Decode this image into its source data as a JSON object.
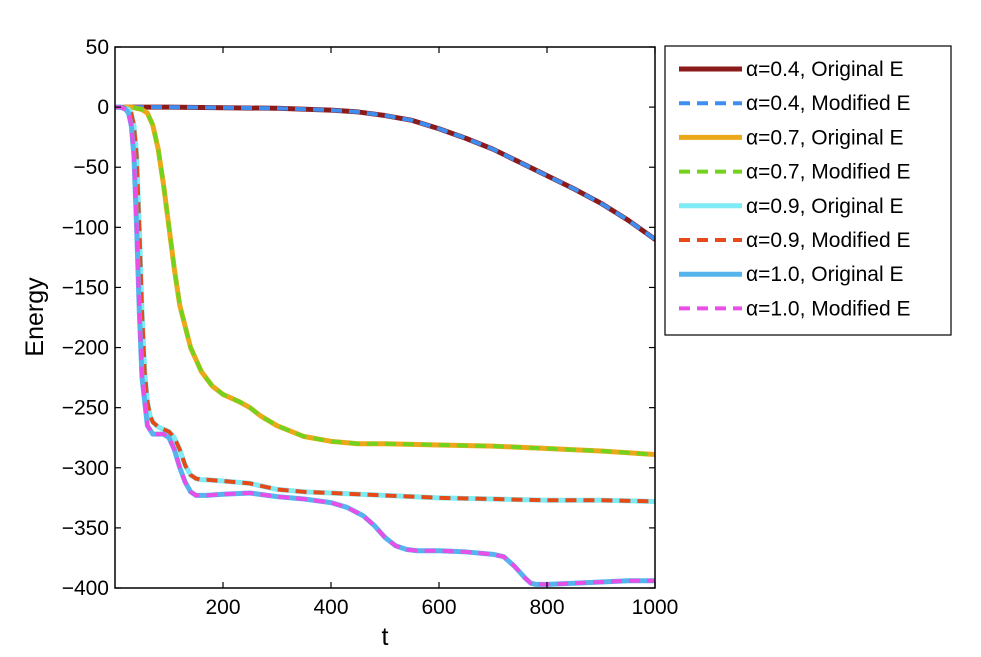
{
  "chart_data": {
    "type": "line",
    "title": "",
    "xlabel": "t",
    "ylabel": "Energy",
    "xlim": [
      0,
      1000
    ],
    "ylim": [
      -400,
      50
    ],
    "xticks": [
      200,
      400,
      600,
      800,
      1000
    ],
    "yticks": [
      50,
      0,
      -50,
      -100,
      -150,
      -200,
      -250,
      -300,
      -350,
      -400
    ],
    "grid": false,
    "legend_position": "outside-right-top",
    "series": [
      {
        "name": "α=0.4, Original E",
        "color": "#8B1A1A",
        "style": "solid",
        "width": 5,
        "x": [
          0,
          100,
          200,
          300,
          400,
          450,
          500,
          550,
          600,
          650,
          700,
          750,
          800,
          850,
          900,
          950,
          1000
        ],
        "y": [
          0,
          0,
          -0.5,
          -1,
          -2.5,
          -4,
          -7,
          -11,
          -18,
          -26,
          -35,
          -46,
          -57,
          -68,
          -80,
          -94,
          -110
        ]
      },
      {
        "name": "α=0.4, Modified E",
        "color": "#3D8EF0",
        "style": "dashed",
        "width": 4,
        "x": [
          0,
          100,
          200,
          300,
          400,
          450,
          500,
          550,
          600,
          650,
          700,
          750,
          800,
          850,
          900,
          950,
          1000
        ],
        "y": [
          0,
          0,
          -0.5,
          -1,
          -2.5,
          -4,
          -7,
          -11,
          -18,
          -26,
          -35,
          -46,
          -57,
          -68,
          -80,
          -94,
          -110
        ]
      },
      {
        "name": "α=0.7, Original E",
        "color": "#EBA91A",
        "style": "solid",
        "width": 5,
        "x": [
          0,
          30,
          50,
          60,
          70,
          80,
          90,
          100,
          110,
          120,
          140,
          160,
          180,
          200,
          230,
          250,
          270,
          300,
          350,
          400,
          450,
          500,
          600,
          700,
          800,
          900,
          1000
        ],
        "y": [
          0,
          0,
          -2,
          -5,
          -15,
          -35,
          -65,
          -100,
          -135,
          -165,
          -200,
          -220,
          -232,
          -239,
          -245,
          -250,
          -257,
          -265,
          -274,
          -278,
          -280,
          -280,
          -281,
          -282,
          -284,
          -286,
          -289
        ]
      },
      {
        "name": "α=0.7, Modified E",
        "color": "#73D21E",
        "style": "dashed",
        "width": 4,
        "x": [
          0,
          30,
          50,
          60,
          70,
          80,
          90,
          100,
          110,
          120,
          140,
          160,
          180,
          200,
          230,
          250,
          270,
          300,
          350,
          400,
          450,
          500,
          600,
          700,
          800,
          900,
          1000
        ],
        "y": [
          0,
          0,
          -2,
          -5,
          -15,
          -35,
          -65,
          -100,
          -135,
          -165,
          -200,
          -220,
          -232,
          -239,
          -245,
          -250,
          -257,
          -265,
          -274,
          -278,
          -280,
          -280,
          -281,
          -282,
          -284,
          -286,
          -289
        ]
      },
      {
        "name": "α=0.9, Original E",
        "color": "#7FEBF5",
        "style": "solid",
        "width": 5,
        "x": [
          0,
          15,
          25,
          30,
          35,
          40,
          45,
          50,
          55,
          60,
          65,
          70,
          80,
          90,
          100,
          110,
          120,
          130,
          140,
          150,
          160,
          170,
          200,
          250,
          300,
          350,
          400,
          500,
          600,
          700,
          800,
          900,
          1000
        ],
        "y": [
          0,
          0,
          -2,
          -5,
          -15,
          -40,
          -100,
          -170,
          -220,
          -245,
          -257,
          -262,
          -266,
          -268,
          -270,
          -275,
          -285,
          -298,
          -306,
          -309,
          -310,
          -310,
          -311,
          -313,
          -318,
          -320,
          -321,
          -323,
          -325,
          -326,
          -327,
          -327,
          -328
        ]
      },
      {
        "name": "α=0.9, Modified E",
        "color": "#E64A19",
        "style": "dashed",
        "width": 4,
        "x": [
          0,
          15,
          25,
          30,
          35,
          40,
          45,
          50,
          55,
          60,
          65,
          70,
          80,
          90,
          100,
          110,
          120,
          130,
          140,
          150,
          160,
          170,
          200,
          250,
          300,
          350,
          400,
          500,
          600,
          700,
          800,
          900,
          1000
        ],
        "y": [
          0,
          0,
          -2,
          -5,
          -15,
          -40,
          -100,
          -170,
          -220,
          -245,
          -257,
          -262,
          -266,
          -268,
          -270,
          -275,
          -285,
          -298,
          -306,
          -309,
          -310,
          -310,
          -311,
          -313,
          -318,
          -320,
          -321,
          -323,
          -325,
          -326,
          -327,
          -327,
          -328
        ]
      },
      {
        "name": "α=1.0, Original E",
        "color": "#55B4EC",
        "style": "solid",
        "width": 5,
        "x": [
          0,
          10,
          20,
          25,
          30,
          35,
          40,
          45,
          50,
          60,
          70,
          90,
          100,
          110,
          120,
          130,
          140,
          150,
          170,
          200,
          250,
          300,
          350,
          400,
          430,
          460,
          480,
          500,
          520,
          540,
          560,
          600,
          650,
          700,
          720,
          740,
          760,
          770,
          780,
          800,
          850,
          900,
          950,
          1000
        ],
        "y": [
          0,
          0,
          -2,
          -5,
          -15,
          -40,
          -100,
          -170,
          -225,
          -265,
          -272,
          -272,
          -275,
          -285,
          -300,
          -312,
          -320,
          -323,
          -323,
          -322,
          -321,
          -324,
          -326,
          -329,
          -333,
          -340,
          -348,
          -358,
          -365,
          -368,
          -369,
          -369,
          -370,
          -372,
          -374,
          -382,
          -392,
          -396,
          -397,
          -397,
          -396,
          -395,
          -394,
          -394
        ]
      },
      {
        "name": "α=1.0, Modified E",
        "color": "#E74FE6",
        "style": "dashed",
        "width": 4,
        "x": [
          0,
          10,
          20,
          25,
          30,
          35,
          40,
          45,
          50,
          60,
          70,
          90,
          100,
          110,
          120,
          130,
          140,
          150,
          170,
          200,
          250,
          300,
          350,
          400,
          430,
          460,
          480,
          500,
          520,
          540,
          560,
          600,
          650,
          700,
          720,
          740,
          760,
          770,
          780,
          800,
          850,
          900,
          950,
          1000
        ],
        "y": [
          0,
          0,
          -2,
          -5,
          -15,
          -40,
          -100,
          -170,
          -225,
          -265,
          -272,
          -272,
          -275,
          -285,
          -300,
          -312,
          -320,
          -323,
          -323,
          -322,
          -321,
          -324,
          -326,
          -329,
          -333,
          -340,
          -348,
          -358,
          -365,
          -368,
          -369,
          -369,
          -370,
          -372,
          -374,
          -382,
          -392,
          -396,
          -397,
          -397,
          -396,
          -395,
          -394,
          -394
        ]
      }
    ]
  }
}
